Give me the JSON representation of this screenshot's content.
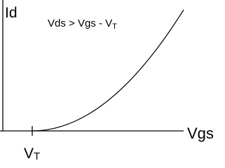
{
  "y_axis_label": "Id",
  "condition": {
    "text": "Vds > Vgs - V",
    "subscript": "T"
  },
  "x_axis_label": "Vgs",
  "threshold_label": {
    "text": "V",
    "subscript": "T"
  }
}
